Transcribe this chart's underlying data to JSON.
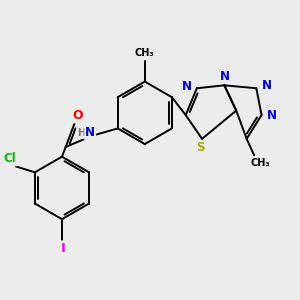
{
  "bg_color": "#ececec",
  "atom_colors": {
    "C": "#000000",
    "N": "#0000cc",
    "S": "#aaaa00",
    "O": "#ff0000",
    "Cl": "#00bb00",
    "I": "#ee00ee",
    "H": "#777777"
  },
  "font_size": 8.5,
  "bond_lw": 1.4
}
